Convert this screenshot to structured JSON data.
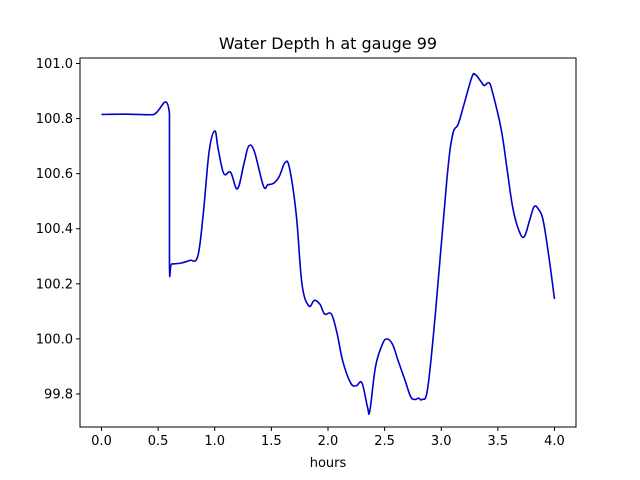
{
  "chart_data": {
    "type": "line",
    "title": "Water Depth h at gauge 99",
    "xlabel": "hours",
    "ylabel": "",
    "xlim": [
      -0.19,
      4.19
    ],
    "ylim": [
      99.68,
      101.02
    ],
    "xticks": [
      0.0,
      0.5,
      1.0,
      1.5,
      2.0,
      2.5,
      3.0,
      3.5,
      4.0
    ],
    "xtick_labels": [
      "0.0",
      "0.5",
      "1.0",
      "1.5",
      "2.0",
      "2.5",
      "3.0",
      "3.5",
      "4.0"
    ],
    "yticks": [
      99.8,
      100.0,
      100.2,
      100.4,
      100.6,
      100.8,
      101.0
    ],
    "ytick_labels": [
      "99.8",
      "100.0",
      "100.2",
      "100.4",
      "100.6",
      "100.8",
      "101.0"
    ],
    "grid": false,
    "line_color": "#0000cc",
    "series": [
      {
        "x": [
          0.0,
          0.2,
          0.45,
          0.6,
          0.6,
          0.62,
          0.7,
          0.78,
          0.85,
          0.9,
          0.95,
          1.0,
          1.03,
          1.08,
          1.14,
          1.2,
          1.26,
          1.3,
          1.35,
          1.43,
          1.47,
          1.52,
          1.57,
          1.62,
          1.66,
          1.72,
          1.77,
          1.83,
          1.88,
          1.93,
          1.97,
          2.03,
          2.08,
          2.13,
          2.2,
          2.25,
          2.3,
          2.35,
          2.37,
          2.42,
          2.48,
          2.52,
          2.57,
          2.62,
          2.68,
          2.73,
          2.77,
          2.8,
          2.83,
          2.88,
          2.95,
          3.05,
          3.1,
          3.15,
          3.2,
          3.27,
          3.3,
          3.35,
          3.38,
          3.42,
          3.45,
          3.53,
          3.58,
          3.63,
          3.68,
          3.73,
          3.78,
          3.82,
          3.86,
          3.9,
          3.95,
          4.0
        ],
        "y": [
          100.815,
          100.816,
          100.814,
          100.818,
          100.27,
          100.272,
          100.275,
          100.285,
          100.3,
          100.46,
          100.68,
          100.755,
          100.69,
          100.6,
          100.605,
          100.545,
          100.64,
          100.7,
          100.68,
          100.555,
          100.56,
          100.565,
          100.59,
          100.64,
          100.62,
          100.45,
          100.2,
          100.12,
          100.14,
          100.125,
          100.09,
          100.09,
          100.02,
          99.92,
          99.84,
          99.83,
          99.84,
          99.75,
          99.74,
          99.9,
          99.98,
          100.0,
          99.98,
          99.92,
          99.85,
          99.79,
          99.78,
          99.785,
          99.78,
          99.82,
          100.1,
          100.58,
          100.74,
          100.78,
          100.85,
          100.95,
          100.96,
          100.935,
          100.92,
          100.93,
          100.9,
          100.76,
          100.62,
          100.48,
          100.4,
          100.37,
          100.43,
          100.48,
          100.47,
          100.43,
          100.3,
          100.145
        ]
      }
    ]
  }
}
